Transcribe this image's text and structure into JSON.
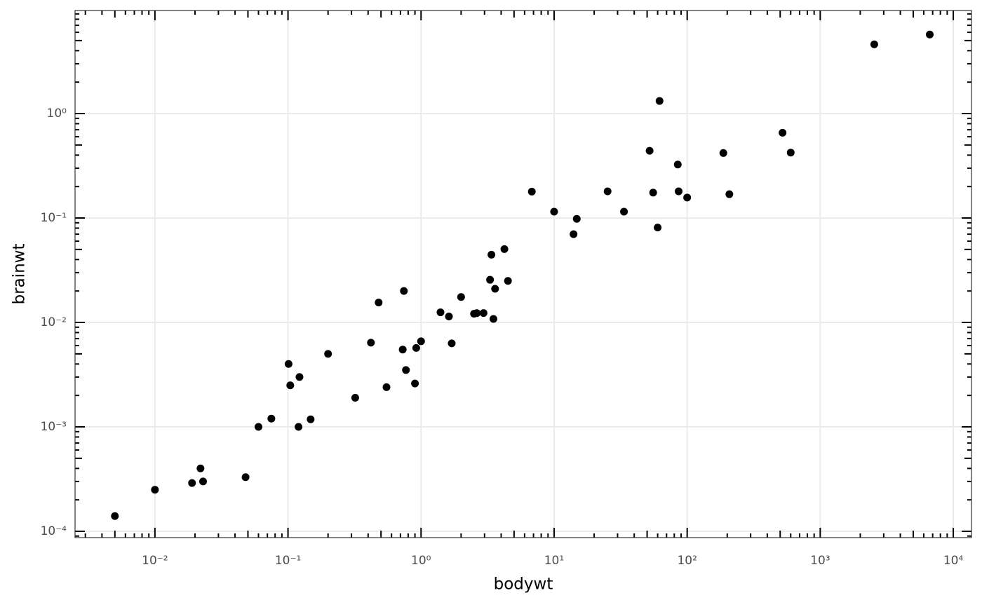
{
  "chart_data": {
    "type": "scatter",
    "x_label": "bodywt",
    "y_label": "brainwt",
    "x_log": true,
    "y_log": true,
    "grid": true,
    "color": "#000000",
    "xlim": [
      0.00251,
      13700
    ],
    "ylim": [
      8.7e-05,
      9.7
    ],
    "xticks": [
      {
        "value": 0.01,
        "label": "10⁻²"
      },
      {
        "value": 0.1,
        "label": "10⁻¹"
      },
      {
        "value": 1,
        "label": "10⁰"
      },
      {
        "value": 10,
        "label": "10¹"
      },
      {
        "value": 100,
        "label": "10²"
      },
      {
        "value": 1000,
        "label": "10³"
      },
      {
        "value": 10000,
        "label": "10⁴"
      }
    ],
    "yticks": [
      {
        "value": 0.0001,
        "label": "10⁻⁴"
      },
      {
        "value": 0.001,
        "label": "10⁻³"
      },
      {
        "value": 0.01,
        "label": "10⁻²"
      },
      {
        "value": 0.1,
        "label": "10⁻¹"
      },
      {
        "value": 1,
        "label": "10⁰"
      }
    ],
    "x": [
      0.005,
      0.01,
      0.019,
      0.022,
      0.023,
      0.048,
      0.06,
      0.075,
      0.101,
      0.104,
      0.12,
      0.122,
      0.148,
      0.2,
      0.32,
      0.42,
      0.48,
      0.55,
      0.728,
      0.743,
      0.77,
      0.9,
      0.92,
      1,
      1.4,
      1.62,
      1.7,
      2,
      2.5,
      2.625,
      2.95,
      3.3,
      3.38,
      3.5,
      3.6,
      4.23,
      4.5,
      6.8,
      10,
      14,
      14.8,
      25.235,
      33.5,
      52.2,
      55.5,
      60,
      62,
      85,
      86.25,
      100,
      187,
      207.5,
      521,
      600,
      2547,
      6654
    ],
    "values": [
      0.00014,
      0.00025,
      0.00029,
      0.0004,
      0.0003,
      0.00033,
      0.001,
      0.0012,
      0.004,
      0.0025,
      0.001,
      0.003,
      0.00118,
      0.005,
      0.0019,
      0.0064,
      0.0155,
      0.0024,
      0.0055,
      0.02,
      0.0035,
      0.0026,
      0.0057,
      0.0066,
      0.0125,
      0.0114,
      0.0063,
      0.0175,
      0.0121,
      0.01227,
      0.0123,
      0.0256,
      0.0445,
      0.0108,
      0.021,
      0.0504,
      0.025,
      0.179,
      0.115,
      0.07,
      0.0982,
      0.18,
      0.115,
      0.44,
      0.175,
      0.081,
      1.32,
      0.325,
      0.18,
      0.157,
      0.419,
      0.169,
      0.655,
      0.423,
      4.603,
      5.712
    ]
  }
}
